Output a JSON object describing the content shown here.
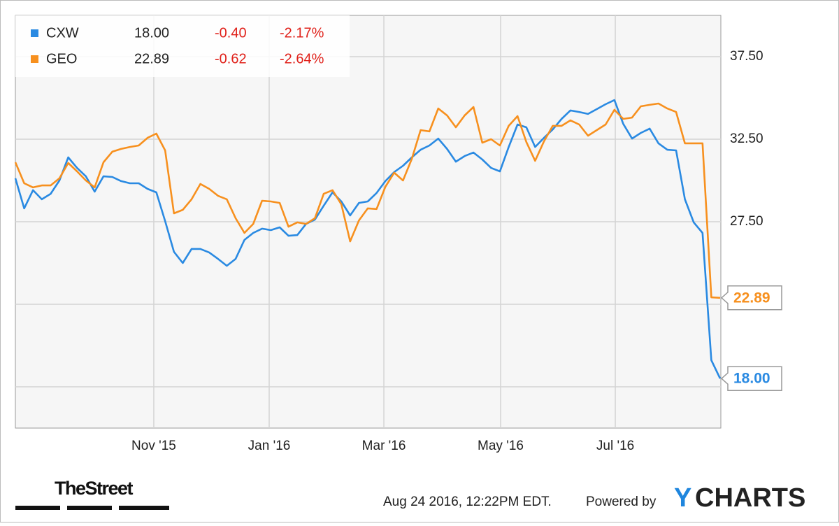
{
  "chart_data": {
    "type": "line",
    "ylim": [
      15,
      40
    ],
    "yticks": [
      {
        "value": 17.5,
        "label": null
      },
      {
        "value": 22.5,
        "label": null
      },
      {
        "value": 27.5,
        "label": "27.50"
      },
      {
        "value": 32.5,
        "label": "32.50"
      },
      {
        "value": 37.5,
        "label": "37.50"
      }
    ],
    "xlim": [
      0,
      80
    ],
    "xticks": [
      {
        "value": 15.71,
        "label": "Nov '15"
      },
      {
        "value": 28.81,
        "label": "Jan '16"
      },
      {
        "value": 41.83,
        "label": "Mar '16"
      },
      {
        "value": 55.08,
        "label": "May '16"
      },
      {
        "value": 68.1,
        "label": "Jul '16"
      }
    ],
    "grid": true,
    "legend": "upper left",
    "series": [
      {
        "name": "CXW",
        "color": "#2a8ae2",
        "last": "18.00",
        "change": "-0.40",
        "change_pct": "-2.17%",
        "values": [
          30.13,
          28.31,
          29.41,
          28.86,
          29.19,
          30.0,
          31.4,
          30.76,
          30.25,
          29.32,
          30.25,
          30.21,
          29.96,
          29.83,
          29.83,
          29.49,
          29.28,
          27.54,
          25.68,
          25.0,
          25.85,
          25.85,
          25.64,
          25.25,
          24.83,
          25.25,
          26.4,
          26.82,
          27.08,
          26.99,
          27.16,
          26.65,
          26.69,
          27.37,
          27.63,
          28.47,
          29.28,
          28.73,
          27.88,
          28.64,
          28.73,
          29.24,
          29.96,
          30.51,
          30.89,
          31.4,
          31.86,
          32.12,
          32.54,
          31.91,
          31.14,
          31.48,
          31.69,
          31.27,
          30.76,
          30.55,
          32.03,
          33.39,
          33.22,
          32.03,
          32.58,
          33.09,
          33.73,
          34.24,
          34.15,
          34.03,
          34.32,
          34.62,
          34.87,
          33.43,
          32.54,
          32.88,
          33.14,
          32.25,
          31.86,
          31.82,
          28.86,
          27.46,
          26.82,
          19.11,
          18.0
        ]
      },
      {
        "name": "GEO",
        "color": "#f7901e",
        "last": "22.89",
        "change": "-0.62",
        "change_pct": "-2.64%",
        "values": [
          31.1,
          29.83,
          29.58,
          29.7,
          29.7,
          30.13,
          31.06,
          30.55,
          30.0,
          29.58,
          31.1,
          31.74,
          31.91,
          32.03,
          32.12,
          32.58,
          32.84,
          31.82,
          28.01,
          28.22,
          28.86,
          29.79,
          29.49,
          29.07,
          28.86,
          27.71,
          26.82,
          27.37,
          28.77,
          28.73,
          28.64,
          27.2,
          27.46,
          27.37,
          27.71,
          29.19,
          29.41,
          28.56,
          26.31,
          27.58,
          28.31,
          28.27,
          29.62,
          30.47,
          30.0,
          31.31,
          33.05,
          32.97,
          34.36,
          33.94,
          33.22,
          33.94,
          34.45,
          32.29,
          32.5,
          32.12,
          33.31,
          33.9,
          32.33,
          31.19,
          32.37,
          33.31,
          33.31,
          33.64,
          33.39,
          32.71,
          33.05,
          33.39,
          34.28,
          33.73,
          33.81,
          34.49,
          34.58,
          34.66,
          34.36,
          34.15,
          32.25,
          32.25,
          32.25,
          22.92,
          22.89
        ]
      }
    ],
    "publisher": "TheStreet",
    "timestamp": "Aug 24 2016, 12:22PM EDT.",
    "powered_by": "Powered by",
    "logo_mark": "Y",
    "logo_text": "CHARTS"
  }
}
